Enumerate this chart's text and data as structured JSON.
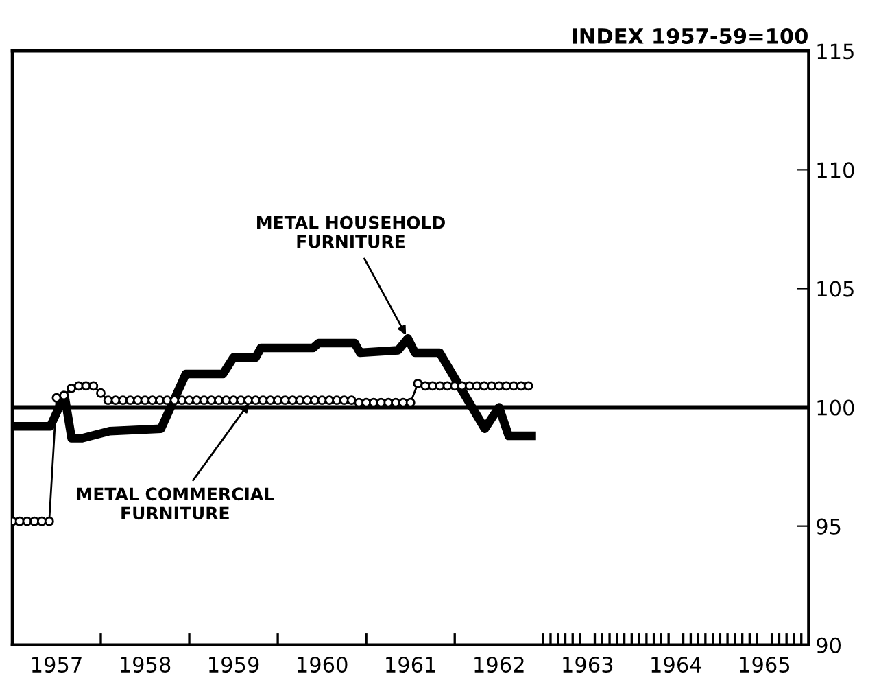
{
  "chart_data": {
    "type": "line",
    "ylabel": "INDEX 1957-59=100",
    "xlim": [
      1957,
      1966
    ],
    "ylim": [
      90,
      115
    ],
    "yticks": [
      90,
      95,
      100,
      105,
      110,
      115
    ],
    "xticks": [
      {
        "value": 1957.5,
        "label": "1957"
      },
      {
        "value": 1958.5,
        "label": "1958"
      },
      {
        "value": 1959.5,
        "label": "1959"
      },
      {
        "value": 1960.5,
        "label": "1960"
      },
      {
        "value": 1961.5,
        "label": "1961"
      },
      {
        "value": 1962.5,
        "label": "1962"
      },
      {
        "value": 1963.5,
        "label": "1963"
      },
      {
        "value": 1964.5,
        "label": "1964"
      },
      {
        "value": 1965.5,
        "label": "1965"
      },
      {
        "value": 1958,
        "label": null
      },
      {
        "value": 1959,
        "label": null
      },
      {
        "value": 1960,
        "label": null
      },
      {
        "value": 1961,
        "label": null
      },
      {
        "value": 1962,
        "label": null
      },
      {
        "value": 1963,
        "label": null
      },
      {
        "value": 1964,
        "label": null
      },
      {
        "value": 1965,
        "label": null
      },
      {
        "value": 1963.083,
        "label": null
      },
      {
        "value": 1963.167,
        "label": null
      },
      {
        "value": 1963.25,
        "label": null
      },
      {
        "value": 1963.333,
        "label": null
      },
      {
        "value": 1963.417,
        "label": null
      },
      {
        "value": 1963.583,
        "label": null
      },
      {
        "value": 1963.667,
        "label": null
      },
      {
        "value": 1963.75,
        "label": null
      },
      {
        "value": 1963.833,
        "label": null
      },
      {
        "value": 1963.917,
        "label": null
      },
      {
        "value": 1964.083,
        "label": null
      },
      {
        "value": 1964.167,
        "label": null
      },
      {
        "value": 1964.25,
        "label": null
      },
      {
        "value": 1964.333,
        "label": null
      },
      {
        "value": 1964.417,
        "label": null
      },
      {
        "value": 1964.583,
        "label": null
      },
      {
        "value": 1964.667,
        "label": null
      },
      {
        "value": 1964.75,
        "label": null
      },
      {
        "value": 1964.833,
        "label": null
      },
      {
        "value": 1964.917,
        "label": null
      },
      {
        "value": 1965.083,
        "label": null
      },
      {
        "value": 1965.167,
        "label": null
      },
      {
        "value": 1965.25,
        "label": null
      },
      {
        "value": 1965.333,
        "label": null
      },
      {
        "value": 1965.417,
        "label": null
      },
      {
        "value": 1965.583,
        "label": null
      },
      {
        "value": 1965.667,
        "label": null
      },
      {
        "value": 1965.75,
        "label": null
      },
      {
        "value": 1965.833,
        "label": null
      },
      {
        "value": 1965.917,
        "label": null
      }
    ],
    "grid": false,
    "legend": false,
    "ref_lines": [
      {
        "axis": "y",
        "value": 100,
        "color": "#000000",
        "line_style": "solid"
      }
    ],
    "series": [
      {
        "color": "#000000",
        "marker": "none",
        "line_style": "solid",
        "x": [
          1957.06,
          1957.43,
          1957.59,
          1957.67,
          1957.79,
          1958.1,
          1958.68,
          1958.96,
          1959.38,
          1959.5,
          1959.75,
          1959.81,
          1960.4,
          1960.46,
          1960.87,
          1960.93,
          1961.36,
          1961.47,
          1961.55,
          1961.83,
          1962.34,
          1962.5,
          1962.61,
          1962.87
        ],
        "values": [
          99.2,
          99.2,
          100.5,
          98.7,
          98.7,
          99.0,
          99.1,
          101.4,
          101.4,
          102.1,
          102.1,
          102.5,
          102.5,
          102.7,
          102.7,
          102.3,
          102.4,
          102.9,
          102.3,
          102.3,
          99.1,
          100.0,
          98.8,
          98.8
        ]
      },
      {
        "color": "#000000",
        "marker": "circle",
        "line_style": "solid",
        "x": [
          1957.0,
          1957.083,
          1957.167,
          1957.25,
          1957.333,
          1957.417,
          1957.5,
          1957.583,
          1957.667,
          1957.75,
          1957.833,
          1957.917,
          1958.0,
          1958.083,
          1958.167,
          1958.25,
          1958.333,
          1958.417,
          1958.5,
          1958.583,
          1958.667,
          1958.75,
          1958.833,
          1958.917,
          1959.0,
          1959.083,
          1959.167,
          1959.25,
          1959.333,
          1959.417,
          1959.5,
          1959.583,
          1959.667,
          1959.75,
          1959.833,
          1959.917,
          1960.0,
          1960.083,
          1960.167,
          1960.25,
          1960.333,
          1960.417,
          1960.5,
          1960.583,
          1960.667,
          1960.75,
          1960.833,
          1960.917,
          1961.0,
          1961.083,
          1961.167,
          1961.25,
          1961.333,
          1961.417,
          1961.5,
          1961.583,
          1961.667,
          1961.75,
          1961.833,
          1961.917,
          1962.0,
          1962.083,
          1962.167,
          1962.25,
          1962.333,
          1962.417,
          1962.5,
          1962.583,
          1962.667,
          1962.75,
          1962.833
        ],
        "values": [
          95.2,
          95.2,
          95.2,
          95.2,
          95.2,
          95.2,
          100.4,
          100.5,
          100.8,
          100.9,
          100.9,
          100.9,
          100.6,
          100.3,
          100.3,
          100.3,
          100.3,
          100.3,
          100.3,
          100.3,
          100.3,
          100.3,
          100.3,
          100.3,
          100.3,
          100.3,
          100.3,
          100.3,
          100.3,
          100.3,
          100.3,
          100.3,
          100.3,
          100.3,
          100.3,
          100.3,
          100.3,
          100.3,
          100.3,
          100.3,
          100.3,
          100.3,
          100.3,
          100.3,
          100.3,
          100.3,
          100.3,
          100.2,
          100.2,
          100.2,
          100.2,
          100.2,
          100.2,
          100.2,
          100.2,
          101.0,
          100.9,
          100.9,
          100.9,
          100.9,
          100.9,
          100.9,
          100.9,
          100.9,
          100.9,
          100.9,
          100.9,
          100.9,
          100.9,
          100.9,
          100.9
        ]
      }
    ],
    "annotations": [
      {
        "text": "METAL HOUSEHOLD\nFURNITURE",
        "x": 1961.47,
        "y": 102.9
      },
      {
        "text": "METAL COMMERCIAL\nFURNITURE",
        "x": 1959.7,
        "y": 100.3
      }
    ]
  }
}
